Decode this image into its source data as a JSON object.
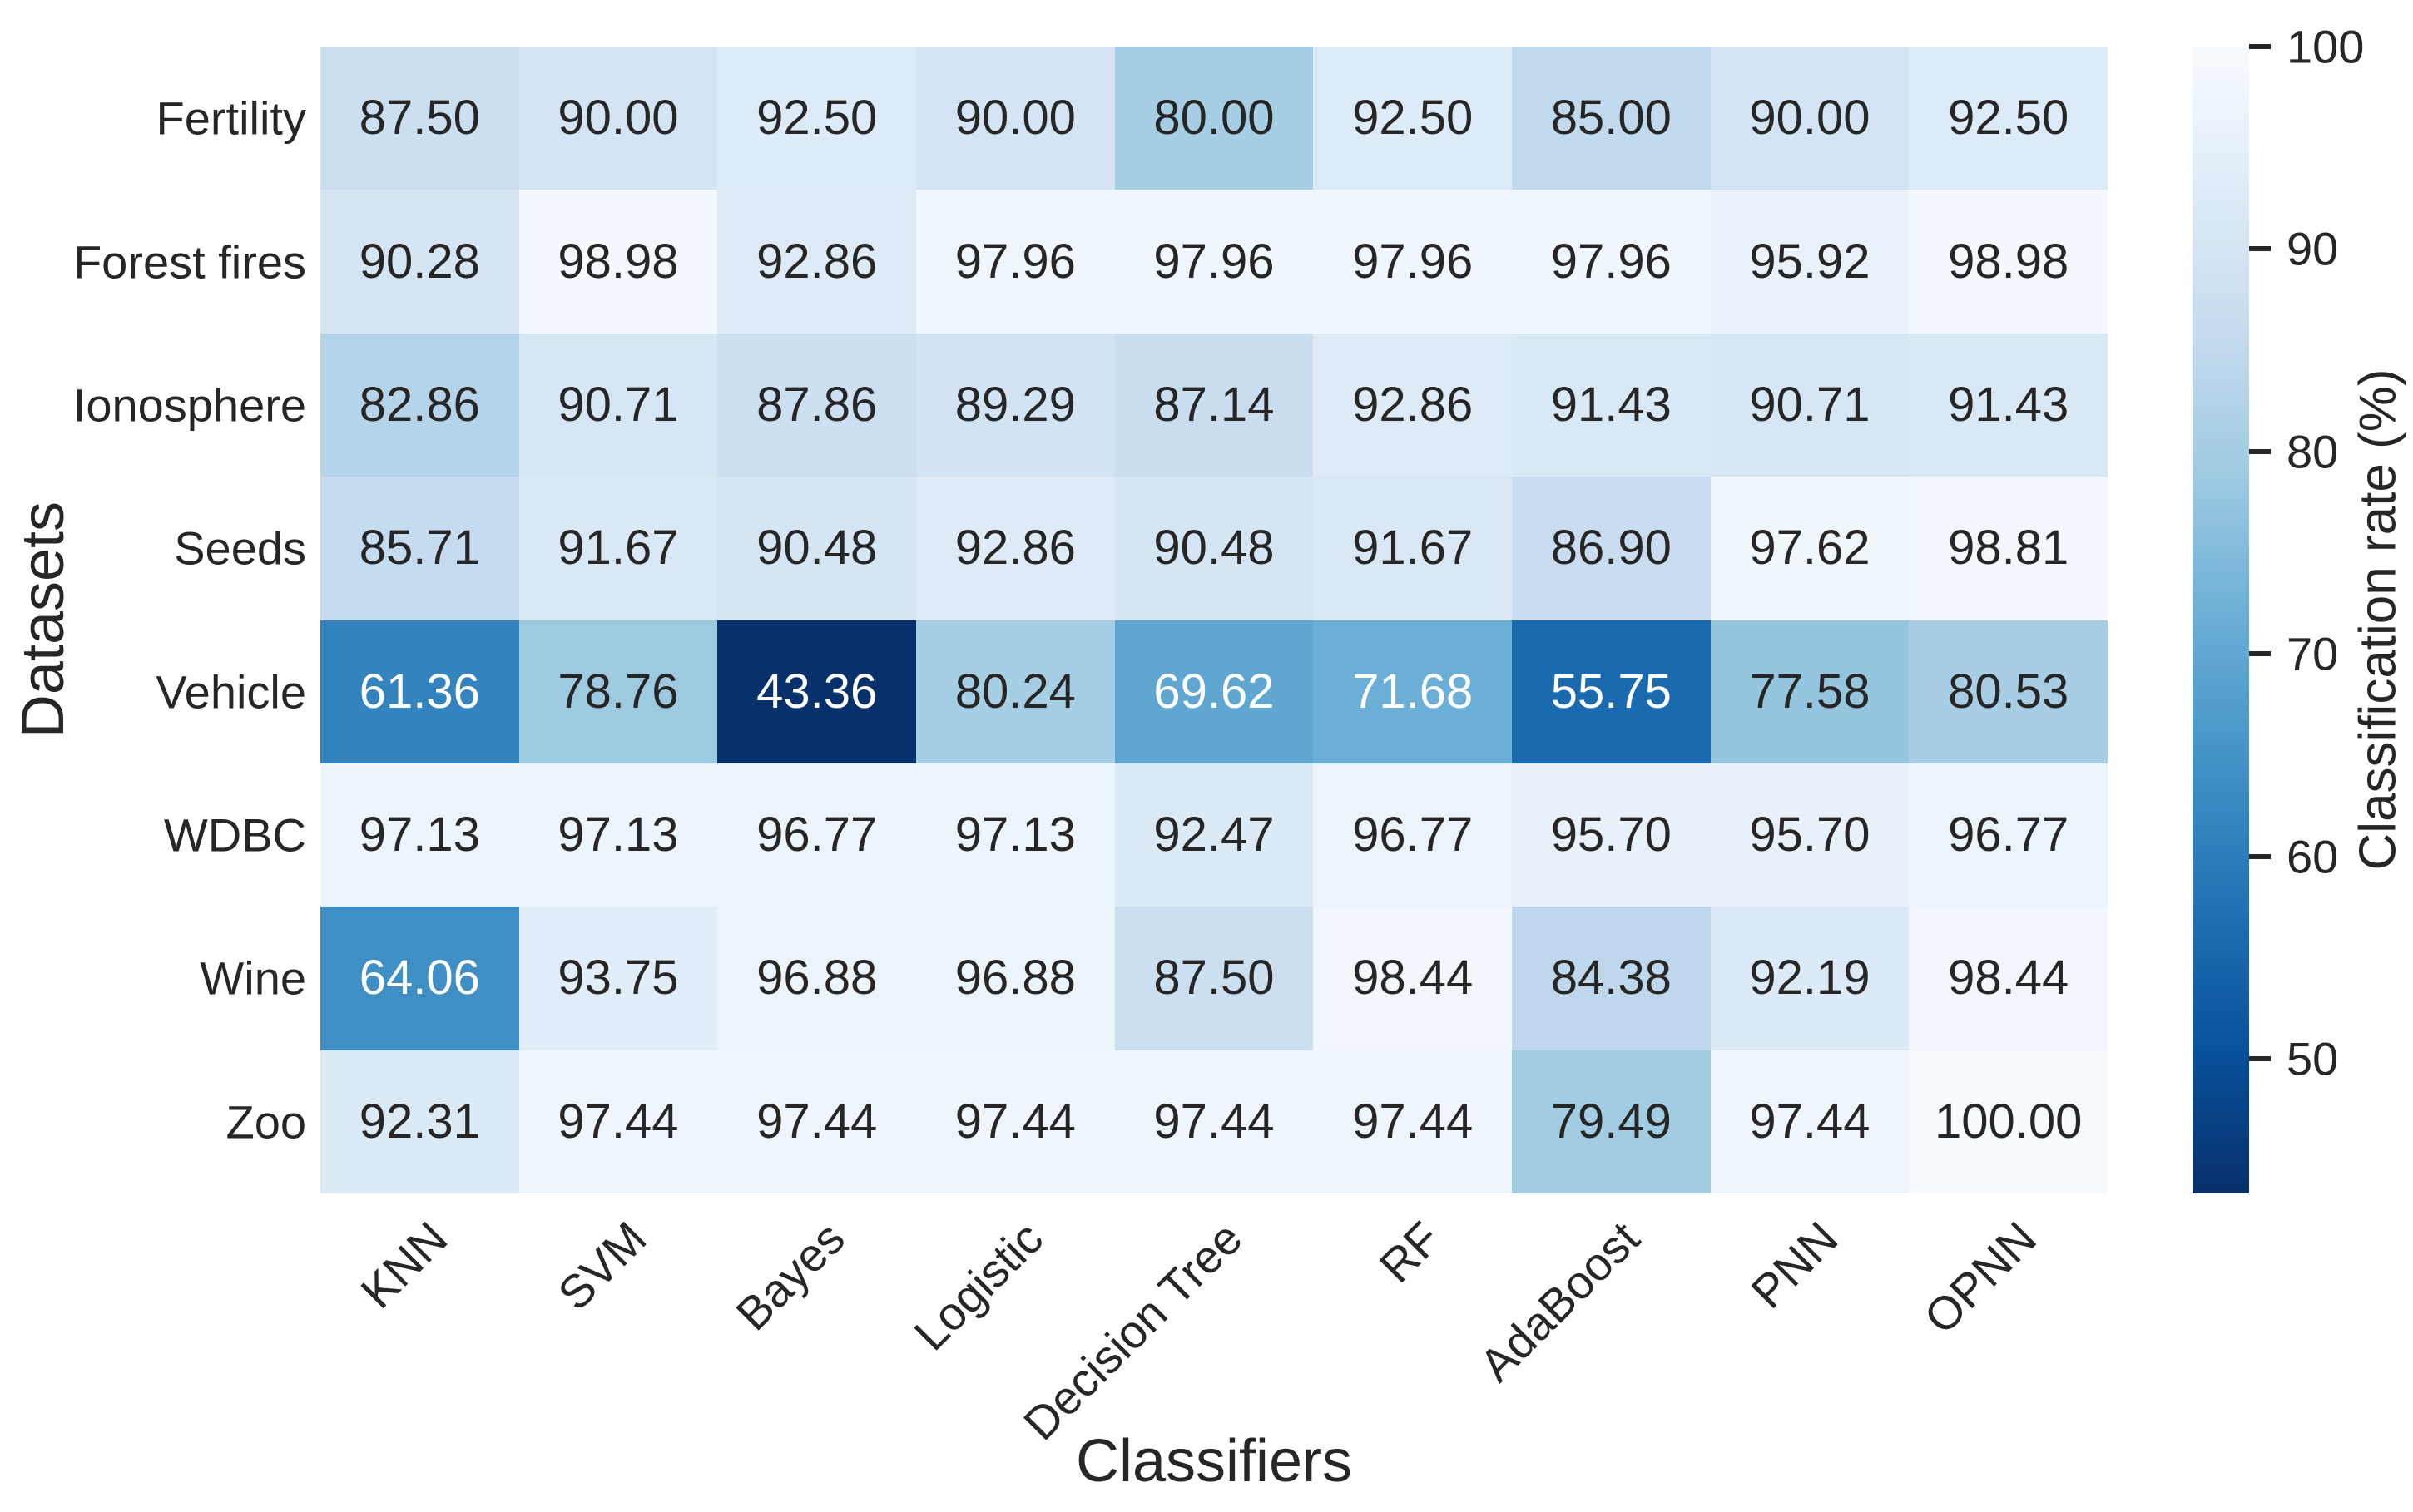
{
  "chart_data": {
    "type": "heatmap",
    "xlabel": "Classifiers",
    "ylabel": "Datasets",
    "colorbar_label": "Classification rate (%)",
    "columns": [
      "KNN",
      "SVM",
      "Bayes",
      "Logistic",
      "Decision Tree",
      "RF",
      "AdaBoost",
      "PNN",
      "OPNN"
    ],
    "rows": [
      "Fertility",
      "Forest fires",
      "Ionosphere",
      "Seeds",
      "Vehicle",
      "WDBC",
      "Wine",
      "Zoo"
    ],
    "values": [
      [
        87.5,
        90.0,
        92.5,
        90.0,
        80.0,
        92.5,
        85.0,
        90.0,
        92.5
      ],
      [
        90.28,
        98.98,
        92.86,
        97.96,
        97.96,
        97.96,
        97.96,
        95.92,
        98.98
      ],
      [
        82.86,
        90.71,
        87.86,
        89.29,
        87.14,
        92.86,
        91.43,
        90.71,
        91.43
      ],
      [
        85.71,
        91.67,
        90.48,
        92.86,
        90.48,
        91.67,
        86.9,
        97.62,
        98.81
      ],
      [
        61.36,
        78.76,
        43.36,
        80.24,
        69.62,
        71.68,
        55.75,
        77.58,
        80.53
      ],
      [
        97.13,
        97.13,
        96.77,
        97.13,
        92.47,
        96.77,
        95.7,
        95.7,
        96.77
      ],
      [
        64.06,
        93.75,
        96.88,
        96.88,
        87.5,
        98.44,
        84.38,
        92.19,
        98.44
      ],
      [
        92.31,
        97.44,
        97.44,
        97.44,
        97.44,
        97.44,
        79.49,
        97.44,
        100.0
      ]
    ],
    "value_decimals": 2,
    "vmin": 43.36,
    "vmax": 100,
    "colorbar_ticks": [
      100,
      90,
      80,
      70,
      60,
      50
    ],
    "colormap_name": "Blues_r",
    "colormap_stops": [
      "#f7fbff",
      "#deebf7",
      "#c6dbef",
      "#9ecae1",
      "#6baed6",
      "#4292c6",
      "#2171b5",
      "#08519c",
      "#08306b"
    ],
    "annotation_color_dark": "#262626",
    "annotation_color_light": "#ffffff",
    "grid": false,
    "legend_position": "right"
  }
}
